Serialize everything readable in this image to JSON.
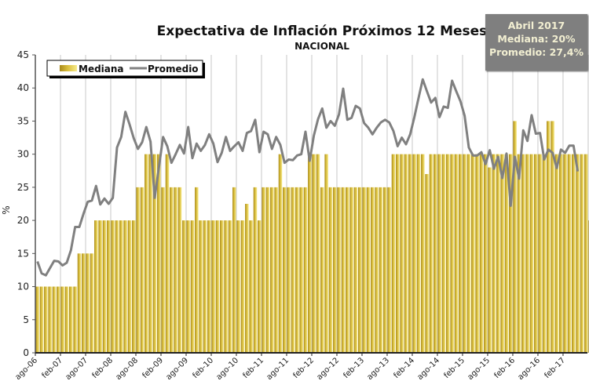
{
  "chart_data": {
    "type": "bar",
    "title": "Expectativa de Inflación Próximos 12 Meses",
    "subtitle": "NACIONAL",
    "xlabel": "",
    "ylabel": "%",
    "ylim": [
      0,
      45
    ],
    "yticks": [
      0,
      5,
      10,
      15,
      20,
      25,
      30,
      35,
      40,
      45
    ],
    "grid": "vertical",
    "legend_placement": "top-left",
    "x_start": "ago-06",
    "x_end": "abr-17",
    "xtick_labels": [
      "ago-06",
      "feb-07",
      "ago-07",
      "feb-08",
      "ago-08",
      "feb-09",
      "ago-09",
      "feb-10",
      "ago-10",
      "feb-11",
      "ago-11",
      "feb-12",
      "ago-12",
      "feb-13",
      "ago-13",
      "feb-14",
      "ago-14",
      "feb-15",
      "ago-15",
      "feb-16",
      "ago-16",
      "feb-17"
    ],
    "series": [
      {
        "name": "Mediana",
        "type": "bar",
        "color": "#c9a826",
        "values": [
          10,
          10,
          10,
          10,
          10,
          10,
          10,
          10,
          10,
          10,
          15,
          15,
          15,
          15,
          20,
          20,
          20,
          20,
          20,
          20,
          20,
          20,
          20,
          20,
          25,
          25,
          30,
          30,
          30,
          30,
          25,
          30,
          25,
          25,
          25,
          20,
          20,
          20,
          25,
          20,
          20,
          20,
          20,
          20,
          20,
          20,
          20,
          25,
          20,
          20,
          22.5,
          20,
          25,
          20,
          25,
          25,
          25,
          25,
          30,
          25,
          25,
          25,
          25,
          25,
          25,
          30,
          30,
          30,
          25,
          30,
          25,
          25,
          25,
          25,
          25,
          25,
          25,
          25,
          25,
          25,
          25,
          25,
          25,
          25,
          25,
          30,
          30,
          30,
          30,
          30,
          30,
          30,
          30,
          27,
          30,
          30,
          30,
          30,
          30,
          30,
          30,
          30,
          30,
          30,
          30,
          30,
          30,
          30,
          28,
          30,
          30,
          30,
          30,
          30,
          35,
          30,
          30,
          30,
          30,
          30,
          30,
          30,
          35,
          35,
          30,
          30,
          30,
          30,
          30,
          30,
          30,
          30,
          20
        ],
        "note": "Values estimated from bar heights; final bar (abr-17) = 20"
      },
      {
        "name": "Promedio",
        "type": "line",
        "color": "#808080",
        "values": [
          13.8,
          12,
          11.7,
          12.8,
          13.9,
          13.8,
          13.2,
          13.6,
          15.5,
          19,
          19,
          21,
          22.8,
          23,
          25.2,
          22.4,
          23.3,
          22.5,
          23.4,
          31,
          32.6,
          36.4,
          34.5,
          32.4,
          30.8,
          31.8,
          34.1,
          31.9,
          23.4,
          28,
          32.6,
          31.2,
          28.7,
          30,
          31.4,
          30.1,
          34.1,
          29.4,
          31.6,
          30.5,
          31.4,
          33,
          31.6,
          28.8,
          30.2,
          32.6,
          30.5,
          31.2,
          31.8,
          30.5,
          33.2,
          33.5,
          35.2,
          30.3,
          33.4,
          33,
          30.8,
          32.6,
          31.4,
          28.7,
          29.2,
          29.1,
          29.8,
          30,
          33.4,
          29,
          32.8,
          35.3,
          36.9,
          34,
          35,
          34.3,
          36,
          39.9,
          35.2,
          35.5,
          37.3,
          36.9,
          34.7,
          34,
          33,
          34,
          34.8,
          35.2,
          34.8,
          33.5,
          31.2,
          32.5,
          31.5,
          33,
          35.6,
          38.5,
          41.3,
          39.5,
          37.8,
          38.5,
          35.6,
          37.2,
          37,
          41.1,
          39.5,
          38,
          35.8,
          31,
          29.8,
          29.8,
          30.3,
          28.5,
          30.6,
          27.8,
          29.6,
          26.4,
          30.1,
          22.2,
          29.6,
          26.3,
          33.6,
          32,
          35.9,
          33.1,
          33.2,
          29.2,
          30.7,
          30.2,
          27.9,
          30.7,
          30.2,
          31.3,
          31.3,
          27.4
        ],
        "note": "Final value (abr-17) = 27.4"
      }
    ]
  },
  "legend": {
    "mediana_label": "Mediana",
    "promedio_label": "Promedio"
  },
  "infobox": {
    "line1": "Abril 2017",
    "line2": "Mediana: 20%",
    "line3": "Promedio: 27,4%"
  },
  "colors": {
    "bar_dark": "#b4951c",
    "bar_light": "#f3e27a",
    "line": "#808080",
    "infobox_bg": "#7f7f7f",
    "infobox_text": "#f2efd2"
  }
}
